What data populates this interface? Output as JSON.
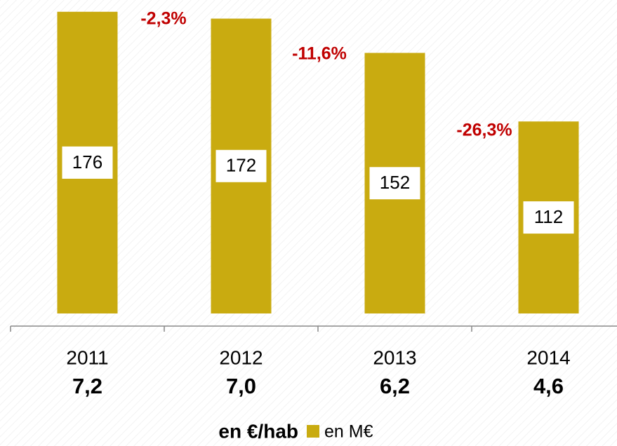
{
  "chart_data": {
    "type": "bar",
    "categories": [
      "2011",
      "2012",
      "2013",
      "2014"
    ],
    "sub_values": [
      {
        "value": 7.2,
        "label": "7,2"
      },
      {
        "value": 7.0,
        "label": "7,0"
      },
      {
        "value": 6.2,
        "label": "6,2"
      },
      {
        "value": 4.6,
        "label": "4,6"
      }
    ],
    "series": [
      {
        "name": "en M€",
        "color": "#c9ab10",
        "values": [
          176,
          172,
          152,
          112
        ]
      }
    ],
    "legend_title": "en €/hab",
    "annotations": [
      "-2,3%",
      "-11,6%",
      "-26,3%"
    ],
    "annotation_color": "#c00000",
    "ylim": [
      0,
      180
    ]
  }
}
